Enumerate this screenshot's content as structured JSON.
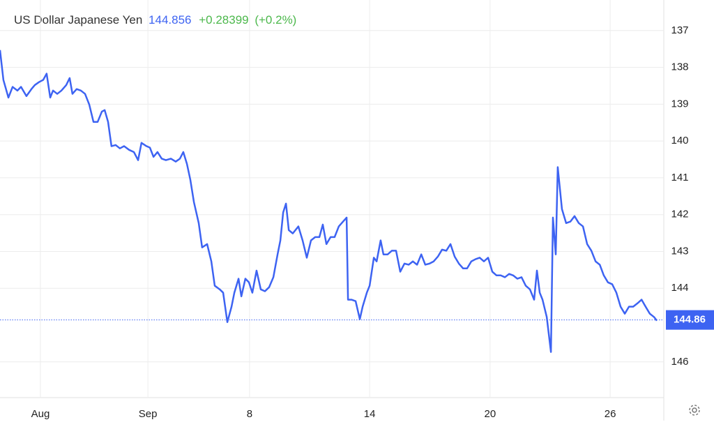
{
  "chart_data": {
    "type": "line",
    "title": "US Dollar Japanese Yen",
    "price": "144.856",
    "change": "+0.28399",
    "change_percent": "(+0.2%)",
    "last_value": 144.86,
    "x": [
      0,
      0.17,
      0.42,
      0.63,
      0.87,
      1.05,
      1.32,
      1.57,
      1.74,
      1.95,
      2.16,
      2.33,
      2.51,
      2.65,
      2.86,
      3.07,
      3.31,
      3.48,
      3.62,
      3.83,
      4.04,
      4.25,
      4.46,
      4.67,
      4.88,
      5.09,
      5.23,
      5.4,
      5.57,
      5.78,
      5.99,
      6.2,
      6.45,
      6.69,
      6.9,
      7.07,
      7.32,
      7.49,
      7.67,
      7.87,
      8.08,
      8.29,
      8.54,
      8.78,
      8.99,
      9.16,
      9.34,
      9.51,
      9.69,
      9.93,
      10.1,
      10.35,
      10.56,
      10.73,
      10.98,
      11.15,
      11.36,
      11.57,
      11.71,
      11.92,
      12.06,
      12.26,
      12.44,
      12.61,
      12.82,
      13.03,
      13.24,
      13.45,
      13.66,
      13.87,
      14.01,
      14.15,
      14.29,
      14.43,
      14.63,
      14.91,
      15.12,
      15.33,
      15.54,
      15.75,
      15.96,
      16.13,
      16.31,
      16.52,
      16.72,
      16.93,
      17.14,
      17.32,
      17.39,
      17.56,
      17.77,
      17.98,
      18.12,
      18.33,
      18.47,
      18.68,
      18.82,
      19.02,
      19.16,
      19.37,
      19.58,
      19.79,
      20.0,
      20.21,
      20.42,
      20.63,
      20.84,
      21.05,
      21.25,
      21.46,
      21.67,
      21.88,
      22.09,
      22.3,
      22.51,
      22.72,
      22.93,
      23.14,
      23.34,
      23.55,
      23.76,
      23.97,
      24.18,
      24.39,
      24.6,
      24.81,
      25.02,
      25.23,
      25.44,
      25.64,
      25.85,
      26.06,
      26.27,
      26.48,
      26.69,
      26.83,
      26.97,
      27.11,
      27.32,
      27.53,
      27.63,
      27.77,
      27.87,
      28.08,
      28.29,
      28.5,
      28.71,
      28.92,
      29.13,
      29.34,
      29.55,
      29.76,
      29.97,
      30.17,
      30.38,
      30.59,
      30.8,
      31.01,
      31.22,
      31.43,
      31.64,
      31.85,
      32.06,
      32.26,
      32.47,
      32.68,
      32.82
    ],
    "series": [
      {
        "color": "#3d63f2",
        "values": [
          137.53,
          138.34,
          138.82,
          138.53,
          138.63,
          138.53,
          138.78,
          138.59,
          138.48,
          138.4,
          138.34,
          138.17,
          138.82,
          138.63,
          138.72,
          138.63,
          138.48,
          138.29,
          138.72,
          138.59,
          138.63,
          138.72,
          139.01,
          139.48,
          139.48,
          139.2,
          139.16,
          139.48,
          140.14,
          140.11,
          140.2,
          140.14,
          140.24,
          140.3,
          140.52,
          140.05,
          140.14,
          140.18,
          140.43,
          140.3,
          140.48,
          140.52,
          140.48,
          140.56,
          140.48,
          140.3,
          140.62,
          141.05,
          141.66,
          142.23,
          142.89,
          142.8,
          143.27,
          143.93,
          144.03,
          144.12,
          144.92,
          144.5,
          144.12,
          143.74,
          144.22,
          143.74,
          143.84,
          144.12,
          143.52,
          144.03,
          144.08,
          143.97,
          143.7,
          143.08,
          142.7,
          141.94,
          141.7,
          142.42,
          142.51,
          142.32,
          142.7,
          143.17,
          142.7,
          142.61,
          142.61,
          142.27,
          142.8,
          142.61,
          142.61,
          142.32,
          142.19,
          142.08,
          144.31,
          144.31,
          144.35,
          144.84,
          144.5,
          144.12,
          143.93,
          143.17,
          143.27,
          142.7,
          143.08,
          143.08,
          142.98,
          142.98,
          143.55,
          143.33,
          143.36,
          143.27,
          143.36,
          143.08,
          143.36,
          143.33,
          143.27,
          143.14,
          142.95,
          142.98,
          142.8,
          143.14,
          143.33,
          143.46,
          143.46,
          143.27,
          143.21,
          143.17,
          143.27,
          143.17,
          143.55,
          143.65,
          143.65,
          143.7,
          143.61,
          143.65,
          143.74,
          143.7,
          143.93,
          144.03,
          144.31,
          143.52,
          144.12,
          144.31,
          144.78,
          145.73,
          142.08,
          143.08,
          140.71,
          141.85,
          142.23,
          142.19,
          142.04,
          142.23,
          142.32,
          142.8,
          142.98,
          143.27,
          143.36,
          143.65,
          143.84,
          143.89,
          144.12,
          144.5,
          144.69,
          144.5,
          144.5,
          144.41,
          144.31,
          144.5,
          144.69,
          144.78,
          144.88
        ]
      }
    ],
    "xlim": [
      0,
      33.03
    ],
    "xticks": [
      {
        "value": 2.02,
        "label": "Aug"
      },
      {
        "value": 7.39,
        "label": "Sep"
      },
      {
        "value": 12.47,
        "label": "8"
      },
      {
        "value": 18.47,
        "label": "14"
      },
      {
        "value": 24.49,
        "label": "20"
      },
      {
        "value": 30.49,
        "label": "26"
      }
    ],
    "ylim": [
      146.97,
      136.17
    ],
    "yticks": [
      137,
      138,
      139,
      140,
      141,
      142,
      143,
      144,
      146
    ],
    "grid": true
  }
}
